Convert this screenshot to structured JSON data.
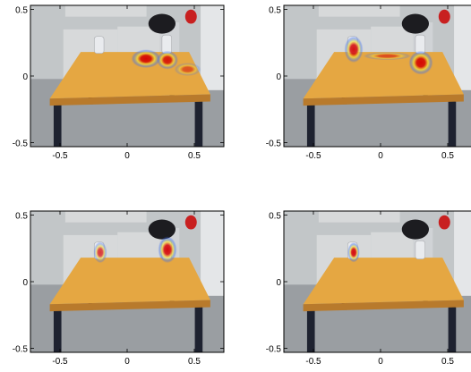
{
  "chart_data": [
    {
      "type": "heatmap",
      "title": "",
      "xlabel": "",
      "ylabel": "",
      "xlim": [
        -0.72,
        0.72
      ],
      "ylim": [
        -0.53,
        0.53
      ],
      "x_ticks": [
        -0.5,
        0,
        0.5
      ],
      "y_ticks": [
        -0.5,
        0,
        0.5
      ],
      "x_tick_labels": [
        "-0.5",
        "0",
        "0.5"
      ],
      "y_tick_labels": [
        "-0.5",
        "0",
        "0.5"
      ],
      "background": "photo of a table with two loudspeakers in an office",
      "hotspots": [
        {
          "x": 0.14,
          "y": 0.13,
          "intensity": 1.0,
          "rx": 0.11,
          "ry": 0.07
        },
        {
          "x": 0.3,
          "y": 0.12,
          "intensity": 0.85,
          "rx": 0.08,
          "ry": 0.07
        },
        {
          "x": 0.45,
          "y": 0.05,
          "intensity": 0.3,
          "rx": 0.1,
          "ry": 0.05
        }
      ]
    },
    {
      "type": "heatmap",
      "title": "",
      "xlabel": "",
      "ylabel": "",
      "xlim": [
        -0.72,
        0.72
      ],
      "ylim": [
        -0.53,
        0.53
      ],
      "x_ticks": [
        -0.5,
        0,
        0.5
      ],
      "y_ticks": [
        -0.5,
        0,
        0.5
      ],
      "x_tick_labels": [
        "-0.5",
        "0",
        "0.5"
      ],
      "y_tick_labels": [
        "-0.5",
        "0",
        "0.5"
      ],
      "background": "photo of a table with two loudspeakers in an office",
      "hotspots": [
        {
          "x": -0.2,
          "y": 0.2,
          "intensity": 0.95,
          "rx": 0.07,
          "ry": 0.1
        },
        {
          "x": 0.3,
          "y": 0.1,
          "intensity": 1.0,
          "rx": 0.09,
          "ry": 0.09
        },
        {
          "x": 0.05,
          "y": 0.15,
          "intensity": 0.35,
          "rx": 0.18,
          "ry": 0.03
        }
      ]
    },
    {
      "type": "heatmap",
      "title": "",
      "xlabel": "",
      "ylabel": "",
      "xlim": [
        -0.72,
        0.72
      ],
      "ylim": [
        -0.53,
        0.53
      ],
      "x_ticks": [
        -0.5,
        0,
        0.5
      ],
      "y_ticks": [
        -0.5,
        0,
        0.5
      ],
      "x_tick_labels": [
        "-0.5",
        "0",
        "0.5"
      ],
      "y_tick_labels": [
        "-0.5",
        "0",
        "0.5"
      ],
      "background": "photo of a table with two loudspeakers in an office",
      "hotspots": [
        {
          "x": -0.2,
          "y": 0.22,
          "intensity": 0.7,
          "rx": 0.05,
          "ry": 0.08
        },
        {
          "x": 0.3,
          "y": 0.24,
          "intensity": 1.0,
          "rx": 0.07,
          "ry": 0.1
        }
      ]
    },
    {
      "type": "heatmap",
      "title": "",
      "xlabel": "",
      "ylabel": "",
      "xlim": [
        -0.72,
        0.72
      ],
      "ylim": [
        -0.53,
        0.53
      ],
      "x_ticks": [
        -0.5,
        0,
        0.5
      ],
      "y_ticks": [
        -0.5,
        0,
        0.5
      ],
      "x_tick_labels": [
        "-0.5",
        "0",
        "0.5"
      ],
      "y_tick_labels": [
        "-0.5",
        "0",
        "0.5"
      ],
      "background": "photo of a table with two loudspeakers in an office",
      "hotspots": [
        {
          "x": -0.2,
          "y": 0.22,
          "intensity": 1.0,
          "rx": 0.045,
          "ry": 0.075
        }
      ]
    }
  ],
  "colors": {
    "wall": "#c2c6c8",
    "floor": "#9a9ea2",
    "table_top": "#e5a742",
    "table_edge": "#b87a2c",
    "table_leg": "#1e2230",
    "shelf": "#d7d9da",
    "speaker": "#e9ebee",
    "bag": "#1c1c20",
    "red_bottle": "#c82020",
    "heat_low": "#3b6ef5",
    "heat_mid": "#f2e23a",
    "heat_high": "#d40000"
  }
}
